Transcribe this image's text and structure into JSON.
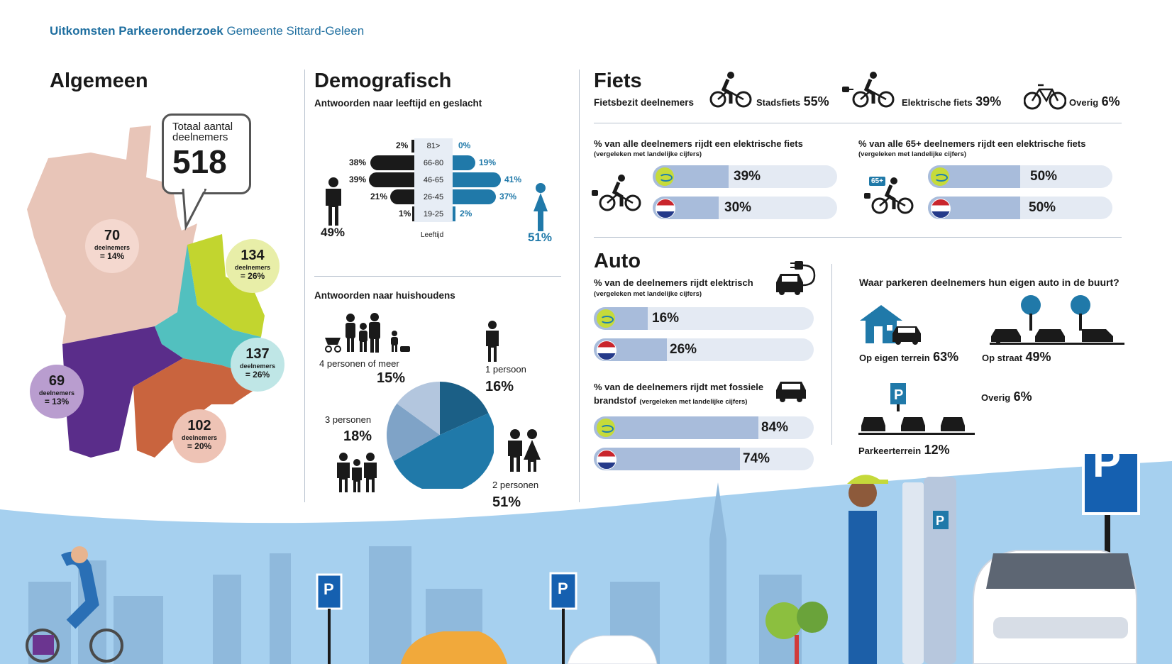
{
  "header": {
    "title_bold": "Uitkomsten Parkeeronderzoek",
    "title_rest": "Gemeente Sittard-Geleen"
  },
  "algemeen": {
    "title": "Algemeen",
    "total_label": "Totaal aantal deelnemers",
    "total_value": "518",
    "regions": [
      {
        "value": "70",
        "label": "deelnemers",
        "pct": "= 14%",
        "color": "#f4d8cf"
      },
      {
        "value": "134",
        "label": "deelnemers",
        "pct": "= 26%",
        "color": "#e8eea8"
      },
      {
        "value": "137",
        "label": "deelnemers",
        "pct": "= 26%",
        "color": "#bfe6e6"
      },
      {
        "value": "69",
        "label": "deelnemers",
        "pct": "= 13%",
        "color": "#b99dcf"
      },
      {
        "value": "102",
        "label": "deelnemers",
        "pct": "= 20%",
        "color": "#eec3b5"
      }
    ]
  },
  "demografisch": {
    "title": "Demografisch",
    "subtitle": "Antwoorden naar leeftijd en geslacht",
    "male_pct": "49%",
    "female_pct": "51%",
    "axis_label": "Leeftijd",
    "age_groups": [
      {
        "label": "81>",
        "male": "2%",
        "female": "0%"
      },
      {
        "label": "66-80",
        "male": "38%",
        "female": "19%"
      },
      {
        "label": "46-65",
        "male": "39%",
        "female": "41%"
      },
      {
        "label": "26-45",
        "male": "21%",
        "female": "37%"
      },
      {
        "label": "19-25",
        "male": "1%",
        "female": "2%"
      }
    ],
    "household_title": "Antwoorden naar huishoudens",
    "households": [
      {
        "label": "1 persoon",
        "pct": "16%"
      },
      {
        "label": "2 personen",
        "pct": "51%"
      },
      {
        "label": "3 personen",
        "pct": "18%"
      },
      {
        "label": "4 personen of meer",
        "pct": "15%"
      }
    ],
    "pie_colors": [
      "#1b5f86",
      "#2079a9",
      "#7fa3c7",
      "#b3c6de"
    ]
  },
  "fiets": {
    "title": "Fiets",
    "subtitle": "Fietsbezit deelnemers",
    "types": [
      {
        "label": "Stadsfiets",
        "pct": "55%"
      },
      {
        "label": "Elektrische fiets",
        "pct": "39%"
      },
      {
        "label": "Overig",
        "pct": "6%"
      }
    ],
    "electric_all": {
      "title": "% van alle deelnemers rijdt een elektrische fiets",
      "note": "(vergeleken met landelijke cijfers)",
      "local": "39%",
      "national": "30%"
    },
    "electric_65": {
      "title": "% van alle 65+ deelnemers rijdt een elektrische fiets",
      "note": "(vergeleken met landelijke cijfers)",
      "badge": "65+",
      "local": "50%",
      "national": "50%"
    }
  },
  "auto": {
    "title": "Auto",
    "electric": {
      "title": "% van de deelnemers rijdt elektrisch",
      "note": "(vergeleken met landelijke cijfers)",
      "local": "16%",
      "national": "26%"
    },
    "fossil": {
      "title_1": "% van de deelnemers rijdt met fossiele",
      "title_2": "brandstof",
      "note": "(vergeleken met landelijke cijfers)",
      "local": "84%",
      "national": "74%"
    },
    "parking_question": "Waar parkeren deelnemers hun eigen auto in de buurt?",
    "parking": [
      {
        "label": "Op eigen terrein",
        "pct": "63%"
      },
      {
        "label": "Op straat",
        "pct": "49%"
      },
      {
        "label": "Overig",
        "pct": "6%"
      },
      {
        "label": "Parkeerterrein",
        "pct": "12%"
      }
    ]
  },
  "colors": {
    "accent_blue": "#1f79a8",
    "dark": "#1a1a1a",
    "bar_fill": "#a8bcdb",
    "bar_track": "#e4eaf3",
    "sky": "#a6d0ef",
    "sign_blue": "#1560b0"
  }
}
